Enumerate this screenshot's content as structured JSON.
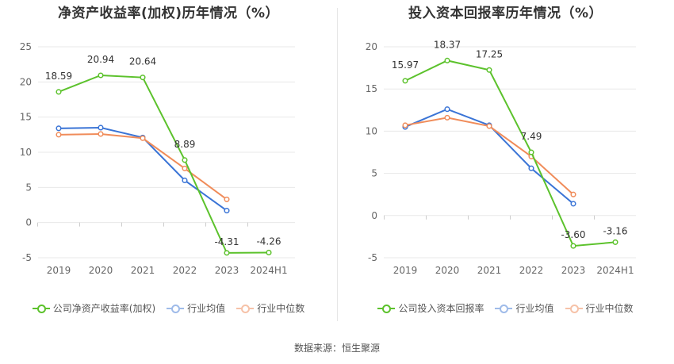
{
  "source_label": "数据来源：恒生聚源",
  "chart_data": [
    {
      "type": "line",
      "title": "净资产收益率(加权)历年情况（%）",
      "categories": [
        "2019",
        "2020",
        "2021",
        "2022",
        "2023",
        "2024H1"
      ],
      "ylim": [
        -5,
        25
      ],
      "yticks": [
        "25",
        "20",
        "15",
        "10",
        "5",
        "0",
        "-5"
      ],
      "series": [
        {
          "name": "公司净资产收益率(加权)",
          "color": "#5cc22c",
          "values": [
            18.59,
            20.94,
            20.64,
            8.89,
            -4.31,
            -4.26
          ],
          "labels": [
            "18.59",
            "20.94",
            "20.64",
            "8.89",
            "-4.31",
            "-4.26"
          ]
        },
        {
          "name": "行业均值",
          "color": "#3a74d6",
          "values": [
            13.4,
            13.5,
            12.1,
            6.0,
            1.7,
            null
          ]
        },
        {
          "name": "行业中位数",
          "color": "#f08c5a",
          "values": [
            12.5,
            12.6,
            12.0,
            7.7,
            3.3,
            null
          ]
        }
      ]
    },
    {
      "type": "line",
      "title": "投入资本回报率历年情况（%）",
      "categories": [
        "2019",
        "2020",
        "2021",
        "2022",
        "2023",
        "2024H1"
      ],
      "ylim": [
        -5,
        20
      ],
      "yticks": [
        "20",
        "15",
        "10",
        "5",
        "0",
        "-5"
      ],
      "series": [
        {
          "name": "公司投入资本回报率",
          "color": "#5cc22c",
          "values": [
            15.97,
            18.37,
            17.25,
            7.49,
            -3.6,
            -3.16
          ],
          "labels": [
            "15.97",
            "18.37",
            "17.25",
            "7.49",
            "-3.60",
            "-3.16"
          ]
        },
        {
          "name": "行业均值",
          "color": "#3a74d6",
          "values": [
            10.5,
            12.6,
            10.7,
            5.6,
            1.4,
            null
          ]
        },
        {
          "name": "行业中位数",
          "color": "#f08c5a",
          "values": [
            10.7,
            11.6,
            10.6,
            7.0,
            2.5,
            null
          ]
        }
      ]
    }
  ]
}
